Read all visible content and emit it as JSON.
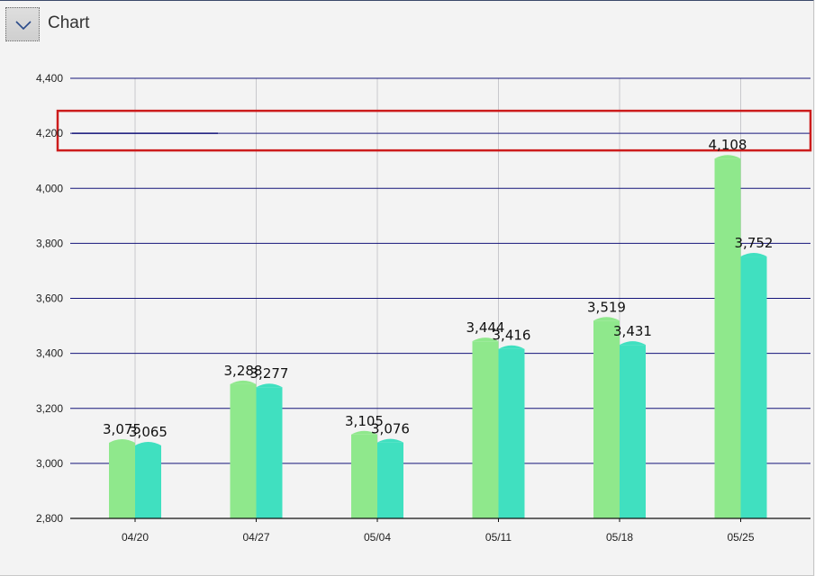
{
  "header": {
    "title": "Chart",
    "toggle_icon": "chevron-down-icon"
  },
  "colors": {
    "series1": "#8fe88c",
    "series2": "#40e0c0",
    "gridline": "#14147a",
    "vgridline": "#c8c8cc",
    "highlight_box": "#cc1c1c"
  },
  "chart_data": {
    "type": "bar",
    "categories": [
      "04/20",
      "04/27",
      "05/04",
      "05/11",
      "05/18",
      "05/25"
    ],
    "series": [
      {
        "values": [
          3075,
          3288,
          3105,
          3444,
          3519,
          4108
        ]
      },
      {
        "values": [
          3065,
          3277,
          3076,
          3416,
          3431,
          3752
        ]
      }
    ],
    "data_labels": [
      [
        "3,075",
        "3,288",
        "3,105",
        "3,444",
        "3,519",
        "4,108"
      ],
      [
        "3,065",
        "3,277",
        "3,076",
        "3,416",
        "3,431",
        "3,752"
      ]
    ],
    "yticks": [
      "2,800",
      "3,000",
      "3,200",
      "3,400",
      "3,600",
      "3,800",
      "4,000",
      "4,200",
      "4,400"
    ],
    "ytick_values": [
      2800,
      3000,
      3200,
      3400,
      3600,
      3800,
      4000,
      4200,
      4400
    ],
    "ylim": [
      2800,
      4400
    ],
    "grid": true,
    "reference_line": {
      "value": 4200,
      "highlighted": true
    }
  }
}
